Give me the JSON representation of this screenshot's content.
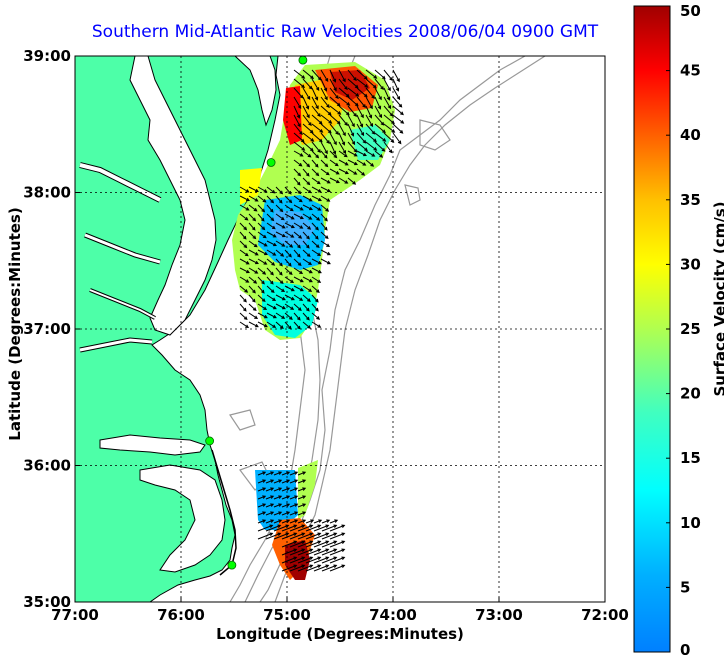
{
  "title": "Southern Mid-Atlantic Raw Velocities 2008/06/04 0900 GMT",
  "xlabel": "Longitude (Degrees:Minutes)",
  "ylabel": "Latitude (Degrees:Minutes)",
  "colorbar_label": "Surface Velocity (cm/s)",
  "x_ticks": [
    "77:00",
    "76:00",
    "75:00",
    "74:00",
    "73:00",
    "72:00"
  ],
  "y_ticks": [
    "39:00",
    "38:00",
    "37:00",
    "36:00",
    "35:00"
  ],
  "colorbar_ticks": [
    "0",
    "5",
    "10",
    "15",
    "20",
    "25",
    "30",
    "35",
    "40",
    "45",
    "50"
  ],
  "colors": {
    "land": "#4dffa8",
    "coast_line": "#000000",
    "bathymetry": "#999999",
    "station": "#00ff00"
  },
  "chart_data": {
    "type": "heatmap",
    "title": "Southern Mid-Atlantic Raw Velocities 2008/06/04 0900 GMT",
    "xlabel": "Longitude (Degrees:Minutes)",
    "ylabel": "Latitude (Degrees:Minutes)",
    "xlim": [
      -77.0,
      -72.0
    ],
    "ylim": [
      35.0,
      39.0
    ],
    "clim": [
      0,
      50
    ],
    "colorbar_label": "Surface Velocity (cm/s)",
    "grid": true,
    "stations": [
      {
        "lon": -74.85,
        "lat": 38.97
      },
      {
        "lon": -75.15,
        "lat": 38.22
      },
      {
        "lon": -75.73,
        "lat": 36.18
      },
      {
        "lon": -75.52,
        "lat": 35.27
      }
    ]
  }
}
